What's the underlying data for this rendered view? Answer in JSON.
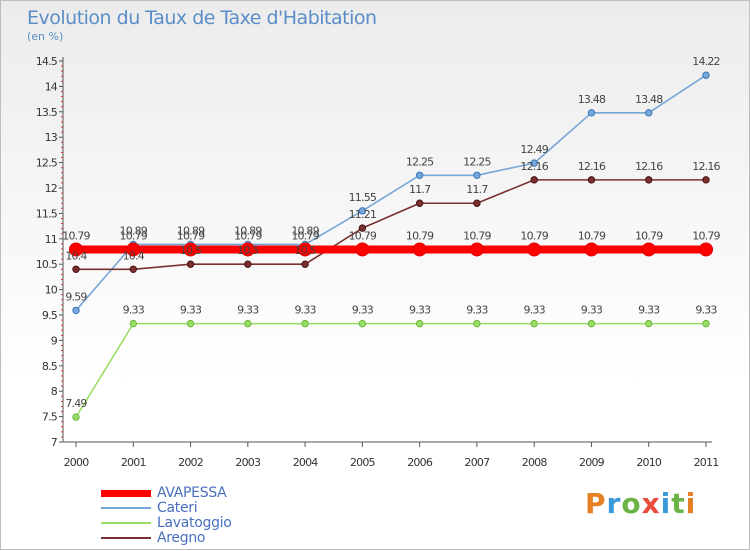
{
  "title": "Evolution du Taux de Taxe d'Habitation",
  "subtitle": "(en %)",
  "logo": {
    "text": "Proxiti",
    "colors": [
      "#e67e22",
      "#3a9ad9",
      "#6ab344",
      "#e74c3c",
      "#3a9ad9",
      "#6ab344",
      "#e67e22"
    ]
  },
  "chart_data": {
    "type": "line",
    "title": "Evolution du Taux de Taxe d'Habitation",
    "ylabel": "(en %)",
    "xlabel": "",
    "x": [
      "2000",
      "2001",
      "2002",
      "2003",
      "2004",
      "2005",
      "2006",
      "2007",
      "2008",
      "2009",
      "2010",
      "2011"
    ],
    "ylim": [
      7,
      14.5
    ],
    "yticks": [
      "7",
      "7.5",
      "8",
      "8.5",
      "9",
      "9.5",
      "10",
      "10.5",
      "11",
      "11.5",
      "12",
      "12.5",
      "13",
      "13.5",
      "14",
      "14.5"
    ],
    "grid": false,
    "legend_position": "bottom-left",
    "series": [
      {
        "name": "AVAPESSA",
        "color": "#ff0000",
        "values": [
          10.79,
          10.79,
          10.79,
          10.79,
          10.79,
          10.79,
          10.79,
          10.79,
          10.79,
          10.79,
          10.79,
          10.79
        ]
      },
      {
        "name": "Cateri",
        "color": "#77a7d8",
        "values": [
          9.59,
          10.89,
          10.89,
          10.89,
          10.89,
          11.55,
          12.25,
          12.25,
          12.49,
          13.48,
          13.48,
          14.22
        ]
      },
      {
        "name": "Lavatoggio",
        "color": "#99dd66",
        "values": [
          7.49,
          9.33,
          9.33,
          9.33,
          9.33,
          9.33,
          9.33,
          9.33,
          9.33,
          9.33,
          9.33,
          9.33
        ]
      },
      {
        "name": "Aregno",
        "color": "#7a3030",
        "values": [
          10.4,
          10.4,
          10.5,
          10.5,
          10.5,
          11.21,
          11.7,
          11.7,
          12.16,
          12.16,
          12.16,
          12.16
        ]
      }
    ],
    "data_labels": {
      "AVAPESSA": [
        "10.79",
        "10.79",
        "10.79",
        "10.79",
        "10.79",
        "10.79",
        "10.79",
        "10.79",
        "10.79",
        "10.79",
        "10.79",
        "10.79"
      ],
      "Cateri": [
        "9.59",
        "10.89",
        "10.89",
        "10.89",
        "10.89",
        "11.55",
        "12.25",
        "12.25",
        "12.49",
        "13.48",
        "13.48",
        "14.22"
      ],
      "Lavatoggio": [
        "7.49",
        "9.33",
        "9.33",
        "9.33",
        "9.33",
        "9.33",
        "9.33",
        "9.33",
        "9.33",
        "9.33",
        "9.33",
        "9.33"
      ],
      "Aregno": [
        "10.4",
        "10.4",
        "10.5",
        "10.5",
        "10.5",
        "11.21",
        "11.7",
        "11.7",
        "12.16",
        "12.16",
        "12.16",
        "12.16"
      ]
    }
  }
}
